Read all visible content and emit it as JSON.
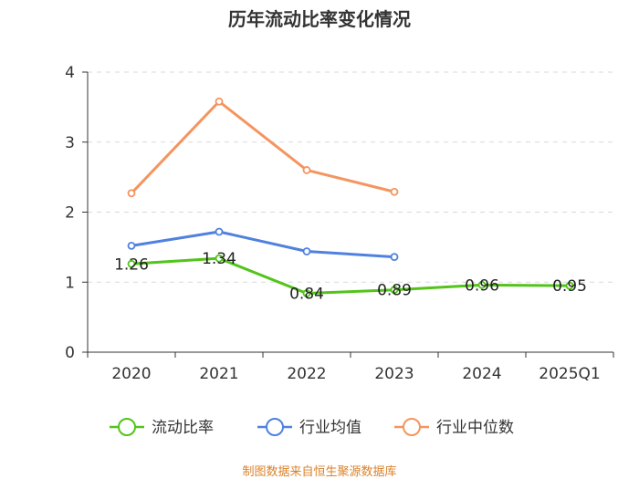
{
  "chart_data": {
    "type": "line",
    "title": "历年流动比率变化情况",
    "categories": [
      "2020",
      "2021",
      "2022",
      "2023",
      "2024",
      "2025Q1"
    ],
    "ylim": [
      0,
      4
    ],
    "yticks": [
      "0",
      "1",
      "2",
      "3",
      "4"
    ],
    "grid": true,
    "legend_position": "bottom",
    "series": [
      {
        "name": "流动比率",
        "color": "#52c41a",
        "values": [
          1.26,
          1.34,
          0.84,
          0.89,
          0.96,
          0.95
        ],
        "labels": [
          "1.26",
          "1.34",
          "0.84",
          "0.89",
          "0.96",
          "0.95"
        ]
      },
      {
        "name": "行业均值",
        "color": "#4f81e0",
        "values": [
          1.52,
          1.72,
          1.44,
          1.36,
          null,
          null
        ]
      },
      {
        "name": "行业中位数",
        "color": "#f4955f",
        "values": [
          2.27,
          3.58,
          2.6,
          2.29,
          null,
          null
        ]
      }
    ],
    "source": "制图数据来自恒生聚源数据库"
  }
}
